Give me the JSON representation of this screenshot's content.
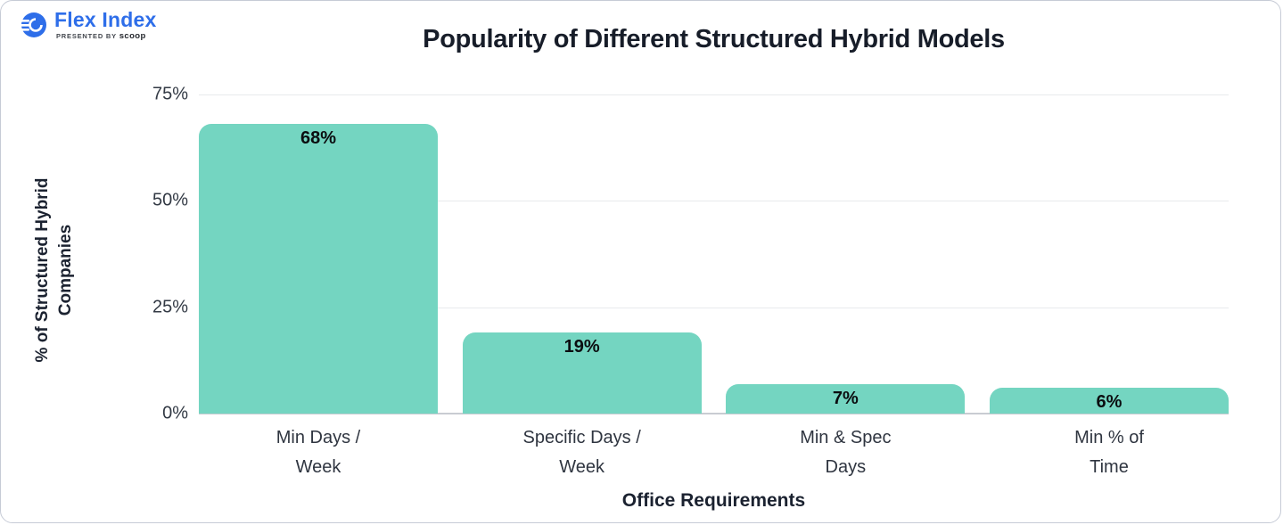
{
  "logo": {
    "brand": "Flex Index",
    "presented_by": "PRESENTED BY",
    "presenter": "scoop",
    "brand_color": "#2e6ee9"
  },
  "chart_data": {
    "type": "bar",
    "title": "Popularity of Different Structured Hybrid Models",
    "xlabel": "Office Requirements",
    "ylabel": "% of Structured Hybrid Companies",
    "categories": [
      "Min Days /\nWeek",
      "Specific Days /\nWeek",
      "Min & Spec\nDays",
      "Min % of\nTime"
    ],
    "values": [
      68,
      19,
      7,
      6
    ],
    "value_labels": [
      "68%",
      "19%",
      "7%",
      "6%"
    ],
    "yticks": [
      {
        "value": 0,
        "label": "0%"
      },
      {
        "value": 25,
        "label": "25%"
      },
      {
        "value": 50,
        "label": "50%"
      },
      {
        "value": 75,
        "label": "75%"
      }
    ],
    "ylim": [
      0,
      75
    ],
    "grid": true,
    "legend": null,
    "bar_color": "#74d5c1",
    "grid_color": "#e8eaed",
    "axis_line_color": "#c9ccd2"
  }
}
